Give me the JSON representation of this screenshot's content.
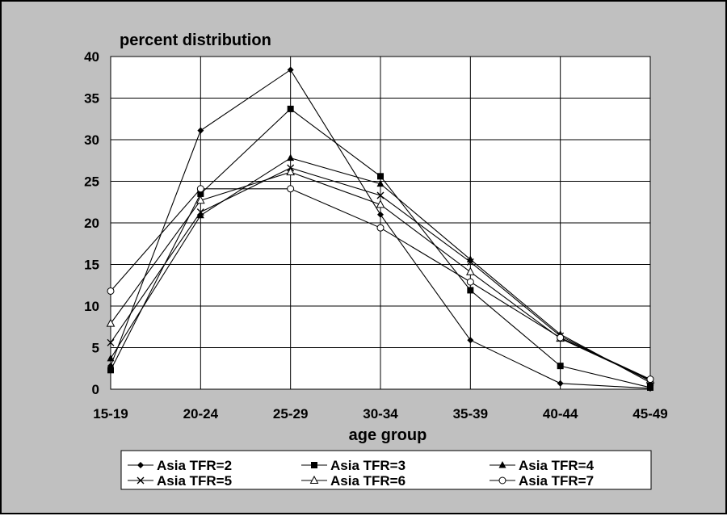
{
  "chart_data": {
    "type": "line",
    "title": "",
    "ylabel": "percent distribution",
    "xlabel": "age group",
    "categories": [
      "15-19",
      "20-24",
      "25-29",
      "30-34",
      "35-39",
      "40-44",
      "45-49"
    ],
    "ylim": [
      0,
      40
    ],
    "yticks": [
      0,
      5,
      10,
      15,
      20,
      25,
      30,
      35,
      40
    ],
    "grid": true,
    "legend_position": "bottom",
    "series": [
      {
        "name": "Asia TFR=2",
        "marker": "diamond-filled",
        "values": [
          2.8,
          31.1,
          38.4,
          21.0,
          5.9,
          0.7,
          0.1
        ]
      },
      {
        "name": "Asia TFR=3",
        "marker": "square-filled",
        "values": [
          2.3,
          23.5,
          33.7,
          25.6,
          11.9,
          2.8,
          0.2
        ]
      },
      {
        "name": "Asia TFR=4",
        "marker": "triangle-filled",
        "values": [
          3.7,
          20.9,
          27.8,
          24.7,
          15.6,
          6.6,
          0.8
        ]
      },
      {
        "name": "Asia TFR=5",
        "marker": "cross",
        "values": [
          5.6,
          21.3,
          26.6,
          23.3,
          15.3,
          6.4,
          1.0
        ]
      },
      {
        "name": "Asia TFR=6",
        "marker": "triangle-open",
        "values": [
          7.9,
          22.7,
          26.1,
          22.2,
          14.1,
          6.1,
          1.1
        ]
      },
      {
        "name": "Asia TFR=7",
        "marker": "circle-open",
        "values": [
          11.8,
          24.1,
          24.1,
          19.4,
          12.9,
          6.2,
          1.2
        ]
      }
    ]
  }
}
